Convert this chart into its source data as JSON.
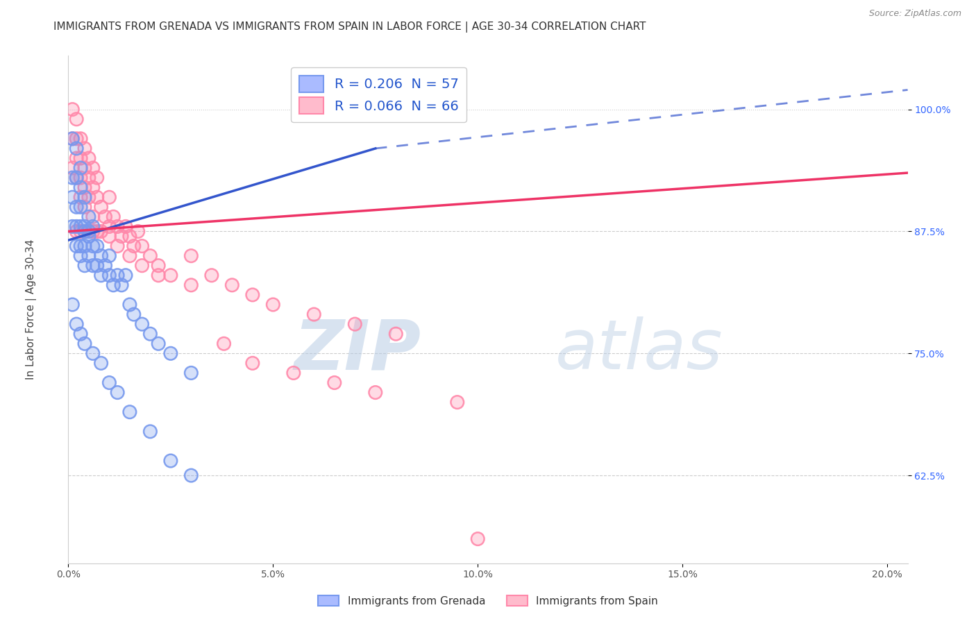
{
  "title": "IMMIGRANTS FROM GRENADA VS IMMIGRANTS FROM SPAIN IN LABOR FORCE | AGE 30-34 CORRELATION CHART",
  "source": "Source: ZipAtlas.com",
  "ylabel": "In Labor Force | Age 30-34",
  "xlim": [
    0.0,
    0.205
  ],
  "ylim": [
    0.535,
    1.055
  ],
  "xtick_labels": [
    "0.0%",
    "5.0%",
    "10.0%",
    "15.0%",
    "20.0%"
  ],
  "xtick_vals": [
    0.0,
    0.05,
    0.1,
    0.15,
    0.2
  ],
  "ytick_labels": [
    "62.5%",
    "75.0%",
    "87.5%",
    "100.0%"
  ],
  "ytick_vals": [
    0.625,
    0.75,
    0.875,
    1.0
  ],
  "grenada_color": "#7799ee",
  "spain_color": "#ff88aa",
  "background_color": "#ffffff",
  "title_fontsize": 11,
  "ylabel_fontsize": 11,
  "tick_fontsize": 10,
  "legend_text1": "R = 0.206  N = 57",
  "legend_text2": "R = 0.066  N = 66",
  "watermark_zip": "ZIP",
  "watermark_atlas": "atlas",
  "grenada_x": [
    0.001,
    0.001,
    0.001,
    0.001,
    0.002,
    0.002,
    0.002,
    0.002,
    0.002,
    0.003,
    0.003,
    0.003,
    0.003,
    0.003,
    0.003,
    0.004,
    0.004,
    0.004,
    0.004,
    0.004,
    0.005,
    0.005,
    0.005,
    0.005,
    0.006,
    0.006,
    0.006,
    0.007,
    0.007,
    0.008,
    0.008,
    0.009,
    0.01,
    0.01,
    0.011,
    0.012,
    0.013,
    0.014,
    0.015,
    0.016,
    0.018,
    0.02,
    0.022,
    0.025,
    0.03,
    0.001,
    0.002,
    0.003,
    0.004,
    0.006,
    0.008,
    0.01,
    0.012,
    0.015,
    0.02,
    0.025,
    0.03
  ],
  "grenada_y": [
    0.97,
    0.93,
    0.91,
    0.88,
    0.96,
    0.93,
    0.9,
    0.88,
    0.86,
    0.94,
    0.92,
    0.9,
    0.88,
    0.86,
    0.85,
    0.91,
    0.88,
    0.86,
    0.84,
    0.875,
    0.89,
    0.87,
    0.85,
    0.875,
    0.88,
    0.86,
    0.84,
    0.86,
    0.84,
    0.85,
    0.83,
    0.84,
    0.85,
    0.83,
    0.82,
    0.83,
    0.82,
    0.83,
    0.8,
    0.79,
    0.78,
    0.77,
    0.76,
    0.75,
    0.73,
    0.8,
    0.78,
    0.77,
    0.76,
    0.75,
    0.74,
    0.72,
    0.71,
    0.69,
    0.67,
    0.64,
    0.625
  ],
  "spain_x": [
    0.001,
    0.001,
    0.001,
    0.002,
    0.002,
    0.002,
    0.002,
    0.003,
    0.003,
    0.003,
    0.003,
    0.004,
    0.004,
    0.004,
    0.004,
    0.005,
    0.005,
    0.005,
    0.006,
    0.006,
    0.006,
    0.007,
    0.007,
    0.008,
    0.009,
    0.01,
    0.01,
    0.011,
    0.012,
    0.013,
    0.014,
    0.015,
    0.016,
    0.017,
    0.018,
    0.02,
    0.022,
    0.025,
    0.03,
    0.035,
    0.04,
    0.045,
    0.05,
    0.06,
    0.07,
    0.08,
    0.1,
    0.002,
    0.003,
    0.004,
    0.005,
    0.006,
    0.007,
    0.008,
    0.01,
    0.012,
    0.015,
    0.018,
    0.022,
    0.03,
    0.038,
    0.045,
    0.055,
    0.065,
    0.075,
    0.095
  ],
  "spain_y": [
    1.0,
    0.97,
    0.94,
    0.99,
    0.97,
    0.95,
    0.93,
    0.97,
    0.95,
    0.93,
    0.91,
    0.96,
    0.94,
    0.92,
    0.9,
    0.95,
    0.93,
    0.91,
    0.94,
    0.92,
    0.89,
    0.93,
    0.91,
    0.9,
    0.89,
    0.91,
    0.88,
    0.89,
    0.88,
    0.87,
    0.88,
    0.87,
    0.86,
    0.875,
    0.86,
    0.85,
    0.84,
    0.83,
    0.85,
    0.83,
    0.82,
    0.81,
    0.8,
    0.79,
    0.78,
    0.77,
    0.56,
    0.875,
    0.875,
    0.875,
    0.875,
    0.875,
    0.875,
    0.875,
    0.87,
    0.86,
    0.85,
    0.84,
    0.83,
    0.82,
    0.76,
    0.74,
    0.73,
    0.72,
    0.71,
    0.7
  ],
  "grenada_trend_x0": 0.0,
  "grenada_trend_y0": 0.866,
  "grenada_trend_x1": 0.075,
  "grenada_trend_y1": 0.96,
  "spain_trend_x0": 0.0,
  "spain_trend_y0": 0.875,
  "spain_trend_x1": 0.205,
  "spain_trend_y1": 0.935,
  "hgrid_vals": [
    0.625,
    0.75,
    0.875
  ],
  "top_line_y": 1.0
}
